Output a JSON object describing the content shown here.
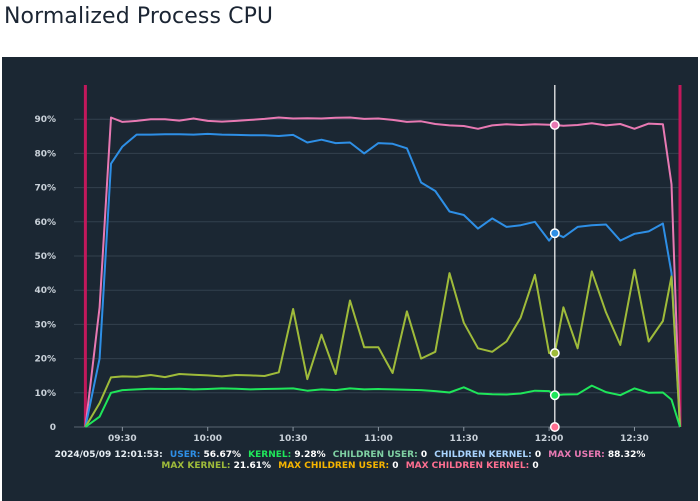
{
  "page": {
    "title": "Normalized Process CPU"
  },
  "colors": {
    "background": "#1b2733",
    "grid": "#33414e",
    "user": "#2e8fe6",
    "kernel": "#1fe65a",
    "children_user": "#7fd1a3",
    "children_kernel": "#a9d4ff",
    "max_user": "#e879b3",
    "max_kernel": "#9fbb3a",
    "max_children_user": "#f5b400",
    "max_children_kernel": "#ff6f91",
    "boundary": "#c2185b",
    "cursor": "#ffffff"
  },
  "legend": {
    "timestamp": "2024/05/09 12:01:53:",
    "items": [
      {
        "key": "user",
        "label": "USER:",
        "value": "56.67%",
        "color": "#2e8fe6"
      },
      {
        "key": "kernel",
        "label": "KERNEL:",
        "value": "9.28%",
        "color": "#1fe65a"
      },
      {
        "key": "children_user",
        "label": "CHILDREN USER:",
        "value": "0",
        "color": "#7fd1a3"
      },
      {
        "key": "children_kernel",
        "label": "CHILDREN KERNEL:",
        "value": "0",
        "color": "#a9d4ff"
      },
      {
        "key": "max_user",
        "label": "MAX USER:",
        "value": "88.32%",
        "color": "#e879b3"
      },
      {
        "key": "max_kernel",
        "label": "MAX KERNEL:",
        "value": "21.61%",
        "color": "#9fbb3a"
      },
      {
        "key": "max_children_user",
        "label": "MAX CHILDREN USER:",
        "value": "0",
        "color": "#f5b400"
      },
      {
        "key": "max_children_kernel",
        "label": "MAX CHILDREN KERNEL:",
        "value": "0",
        "color": "#ff6f91"
      }
    ]
  },
  "chart_data": {
    "type": "line",
    "xlim": [
      "09:13",
      "12:46"
    ],
    "ylim": [
      0,
      100
    ],
    "yticks": [
      0,
      10,
      20,
      30,
      40,
      50,
      60,
      70,
      80,
      90
    ],
    "ytick_labels": [
      "0",
      "10%",
      "20%",
      "30%",
      "40%",
      "50%",
      "60%",
      "70%",
      "80%",
      "90%"
    ],
    "xticks": [
      "09:30",
      "10:00",
      "10:30",
      "11:00",
      "11:30",
      "12:00",
      "12:30"
    ],
    "boundaries": [
      "09:17",
      "12:46"
    ],
    "cursor": "12:02",
    "grid": true,
    "legend_position": "bottom",
    "series": [
      {
        "key": "max_user",
        "name": "MAX USER",
        "color": "#e879b3",
        "points": [
          [
            "09:17",
            0
          ],
          [
            "09:22",
            35
          ],
          [
            "09:26",
            90.5
          ],
          [
            "09:30",
            89.2
          ],
          [
            "09:35",
            89.5
          ],
          [
            "09:40",
            90
          ],
          [
            "09:45",
            90
          ],
          [
            "09:50",
            89.6
          ],
          [
            "09:55",
            90.2
          ],
          [
            "10:00",
            89.5
          ],
          [
            "10:05",
            89.3
          ],
          [
            "10:10",
            89.5
          ],
          [
            "10:15",
            89.8
          ],
          [
            "10:20",
            90.1
          ],
          [
            "10:25",
            90.5
          ],
          [
            "10:30",
            90.2
          ],
          [
            "10:35",
            90.3
          ],
          [
            "10:40",
            90.2
          ],
          [
            "10:45",
            90.4
          ],
          [
            "10:50",
            90.5
          ],
          [
            "10:55",
            90.1
          ],
          [
            "11:00",
            90.2
          ],
          [
            "11:05",
            89.8
          ],
          [
            "11:10",
            89.2
          ],
          [
            "11:15",
            89.4
          ],
          [
            "11:20",
            88.6
          ],
          [
            "11:25",
            88.2
          ],
          [
            "11:30",
            88
          ],
          [
            "11:35",
            87.2
          ],
          [
            "11:40",
            88.2
          ],
          [
            "11:45",
            88.5
          ],
          [
            "11:50",
            88.3
          ],
          [
            "11:55",
            88.5
          ],
          [
            "12:00",
            88.4
          ],
          [
            "12:02",
            88.3
          ],
          [
            "12:05",
            88.1
          ],
          [
            "12:10",
            88.3
          ],
          [
            "12:15",
            88.8
          ],
          [
            "12:20",
            88.2
          ],
          [
            "12:25",
            88.6
          ],
          [
            "12:30",
            87.2
          ],
          [
            "12:35",
            88.7
          ],
          [
            "12:40",
            88.5
          ],
          [
            "12:43",
            71
          ],
          [
            "12:46",
            0
          ]
        ]
      },
      {
        "key": "user",
        "name": "USER",
        "color": "#2e8fe6",
        "points": [
          [
            "09:17",
            0
          ],
          [
            "09:22",
            20
          ],
          [
            "09:26",
            77
          ],
          [
            "09:30",
            82
          ],
          [
            "09:35",
            85.5
          ],
          [
            "09:40",
            85.5
          ],
          [
            "09:45",
            85.6
          ],
          [
            "09:50",
            85.6
          ],
          [
            "09:55",
            85.5
          ],
          [
            "10:00",
            85.7
          ],
          [
            "10:05",
            85.5
          ],
          [
            "10:10",
            85.4
          ],
          [
            "10:15",
            85.3
          ],
          [
            "10:20",
            85.3
          ],
          [
            "10:25",
            85.1
          ],
          [
            "10:30",
            85.4
          ],
          [
            "10:35",
            83.2
          ],
          [
            "10:40",
            84
          ],
          [
            "10:45",
            83
          ],
          [
            "10:50",
            83.2
          ],
          [
            "10:55",
            80
          ],
          [
            "11:00",
            83
          ],
          [
            "11:05",
            82.8
          ],
          [
            "11:10",
            81.5
          ],
          [
            "11:15",
            71.5
          ],
          [
            "11:20",
            69
          ],
          [
            "11:25",
            63
          ],
          [
            "11:30",
            62
          ],
          [
            "11:35",
            58
          ],
          [
            "11:40",
            61
          ],
          [
            "11:45",
            58.5
          ],
          [
            "11:50",
            59
          ],
          [
            "11:55",
            60
          ],
          [
            "12:00",
            54.5
          ],
          [
            "12:02",
            56.67
          ],
          [
            "12:05",
            55.5
          ],
          [
            "12:10",
            58.5
          ],
          [
            "12:15",
            59
          ],
          [
            "12:20",
            59.2
          ],
          [
            "12:25",
            54.5
          ],
          [
            "12:30",
            56.5
          ],
          [
            "12:35",
            57.2
          ],
          [
            "12:40",
            59.5
          ],
          [
            "12:43",
            45
          ],
          [
            "12:46",
            0
          ]
        ]
      },
      {
        "key": "max_kernel",
        "name": "MAX KERNEL",
        "color": "#9fbb3a",
        "points": [
          [
            "09:17",
            0
          ],
          [
            "09:22",
            7
          ],
          [
            "09:26",
            14.5
          ],
          [
            "09:30",
            14.8
          ],
          [
            "09:35",
            14.7
          ],
          [
            "09:40",
            15.2
          ],
          [
            "09:45",
            14.6
          ],
          [
            "09:50",
            15.5
          ],
          [
            "09:55",
            15.3
          ],
          [
            "10:00",
            15.1
          ],
          [
            "10:05",
            14.8
          ],
          [
            "10:10",
            15.2
          ],
          [
            "10:15",
            15.1
          ],
          [
            "10:20",
            14.9
          ],
          [
            "10:25",
            16
          ],
          [
            "10:30",
            34.5
          ],
          [
            "10:35",
            14
          ],
          [
            "10:40",
            27
          ],
          [
            "10:45",
            15.5
          ],
          [
            "10:50",
            37
          ],
          [
            "10:55",
            23.3
          ],
          [
            "11:00",
            23.3
          ],
          [
            "11:05",
            15.8
          ],
          [
            "11:10",
            33.8
          ],
          [
            "11:15",
            20
          ],
          [
            "11:20",
            22
          ],
          [
            "11:25",
            45
          ],
          [
            "11:30",
            30.5
          ],
          [
            "11:35",
            23
          ],
          [
            "11:40",
            22
          ],
          [
            "11:45",
            25
          ],
          [
            "11:50",
            32
          ],
          [
            "11:55",
            44.5
          ],
          [
            "12:00",
            21.6
          ],
          [
            "12:02",
            21.61
          ],
          [
            "12:05",
            35
          ],
          [
            "12:10",
            23
          ],
          [
            "12:15",
            45.5
          ],
          [
            "12:20",
            33.5
          ],
          [
            "12:25",
            24
          ],
          [
            "12:30",
            46
          ],
          [
            "12:35",
            25
          ],
          [
            "12:40",
            31
          ],
          [
            "12:43",
            44
          ],
          [
            "12:46",
            0
          ]
        ]
      },
      {
        "key": "kernel",
        "name": "KERNEL",
        "color": "#1fe65a",
        "points": [
          [
            "09:17",
            0
          ],
          [
            "09:22",
            3
          ],
          [
            "09:26",
            10
          ],
          [
            "09:30",
            10.8
          ],
          [
            "09:35",
            11
          ],
          [
            "09:40",
            11.2
          ],
          [
            "09:45",
            11.1
          ],
          [
            "09:50",
            11.2
          ],
          [
            "09:55",
            11
          ],
          [
            "10:00",
            11.1
          ],
          [
            "10:05",
            11.3
          ],
          [
            "10:10",
            11.2
          ],
          [
            "10:15",
            11
          ],
          [
            "10:20",
            11.1
          ],
          [
            "10:25",
            11.2
          ],
          [
            "10:30",
            11.3
          ],
          [
            "10:35",
            10.6
          ],
          [
            "10:40",
            11
          ],
          [
            "10:45",
            10.8
          ],
          [
            "10:50",
            11.3
          ],
          [
            "10:55",
            11
          ],
          [
            "11:00",
            11.1
          ],
          [
            "11:05",
            11
          ],
          [
            "11:10",
            10.9
          ],
          [
            "11:15",
            10.8
          ],
          [
            "11:20",
            10.5
          ],
          [
            "11:25",
            10.1
          ],
          [
            "11:30",
            11.6
          ],
          [
            "11:35",
            9.8
          ],
          [
            "11:40",
            9.6
          ],
          [
            "11:45",
            9.5
          ],
          [
            "11:50",
            9.8
          ],
          [
            "11:55",
            10.6
          ],
          [
            "12:00",
            10.5
          ],
          [
            "12:02",
            9.28
          ],
          [
            "12:05",
            9.5
          ],
          [
            "12:10",
            9.6
          ],
          [
            "12:15",
            12.1
          ],
          [
            "12:20",
            10.2
          ],
          [
            "12:25",
            9.3
          ],
          [
            "12:30",
            11.3
          ],
          [
            "12:35",
            10
          ],
          [
            "12:40",
            10.1
          ],
          [
            "12:43",
            8
          ],
          [
            "12:46",
            0
          ]
        ]
      }
    ]
  }
}
